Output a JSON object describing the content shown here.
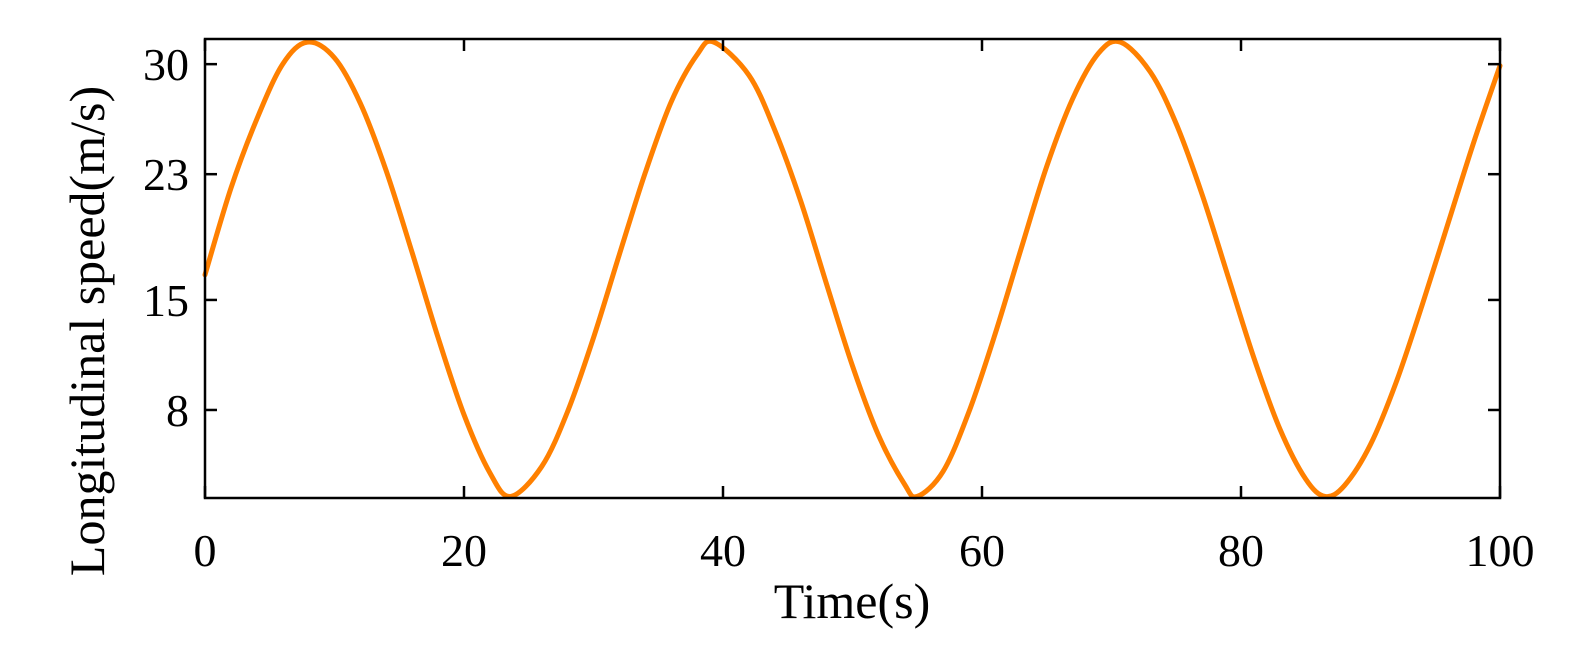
{
  "chart_data": {
    "type": "line",
    "title": "",
    "xlabel": "Time(s)",
    "ylabel": "Longitudinal speed(m/s)",
    "xlim": [
      0,
      100
    ],
    "ylim": [
      2.4,
      31.6
    ],
    "xticks": [
      0,
      20,
      40,
      60,
      80,
      100
    ],
    "xtick_labels": [
      "0",
      "20",
      "40",
      "60",
      "80",
      "100"
    ],
    "yticks": [
      8,
      15,
      23,
      30
    ],
    "ytick_labels": [
      "8",
      "15",
      "23",
      "30"
    ],
    "grid": false,
    "legend": "none",
    "series": [
      {
        "color": "#FF8000",
        "x": [
          0,
          2,
          4,
          6,
          7.9,
          10,
          12,
          14,
          16,
          18,
          20,
          22,
          23.6,
          26,
          28,
          30,
          32,
          34,
          36,
          38,
          39.3,
          42,
          44,
          46,
          48,
          50,
          52,
          54,
          55.0,
          57,
          59,
          61,
          63,
          65,
          67,
          69,
          70.7,
          73,
          75,
          77,
          79,
          81,
          83,
          85,
          86.5,
          88,
          90,
          92,
          94,
          96,
          98,
          100
        ],
        "y": [
          16.6,
          22.1,
          26.5,
          30.0,
          31.4,
          30.4,
          27.5,
          23.2,
          18.0,
          12.6,
          7.7,
          4.0,
          2.5,
          4.4,
          7.9,
          12.6,
          17.9,
          23.1,
          27.6,
          30.6,
          31.4,
          29.3,
          25.8,
          21.3,
          16.0,
          10.8,
          6.4,
          3.3,
          2.5,
          4.1,
          7.9,
          12.8,
          18.2,
          23.5,
          27.8,
          30.7,
          31.4,
          29.5,
          26.2,
          21.7,
          16.5,
          11.3,
          6.8,
          3.6,
          2.5,
          3.2,
          5.8,
          9.8,
          14.7,
          19.9,
          25.1,
          29.9
        ]
      }
    ]
  }
}
